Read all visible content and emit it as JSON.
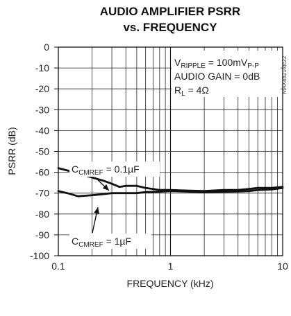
{
  "chart_data": {
    "type": "line",
    "title_lines": [
      "AUDIO AMPLIFIER PSRR",
      "vs. FREQUENCY"
    ],
    "xlabel": "FREQUENCY (kHz)",
    "ylabel": "PSRR (dB)",
    "x_scale": "log",
    "xlim": [
      0.1,
      10
    ],
    "ylim": [
      -100,
      0
    ],
    "x_ticks": [
      {
        "value": 0.1,
        "label": "0.1"
      },
      {
        "value": 1,
        "label": "1"
      },
      {
        "value": 10,
        "label": "10"
      }
    ],
    "y_ticks": [
      0,
      -10,
      -20,
      -30,
      -40,
      -50,
      -60,
      -70,
      -80,
      -90,
      -100
    ],
    "grid": true,
    "conditions": [
      {
        "main": "V",
        "sub": "RIPPLE",
        "rest": " = 100mV",
        "sub2": "P-P"
      },
      {
        "main": "AUDIO GAIN = 0dB",
        "sub": "",
        "rest": "",
        "sub2": ""
      },
      {
        "main": "R",
        "sub": "L",
        "rest": " = 4Ω",
        "sub2": ""
      }
    ],
    "part_code": "MAX8821toc22",
    "series": [
      {
        "name_main": "C",
        "name_sub": "CMREF",
        "name_rest": " = 0.1µF",
        "x": [
          0.1,
          0.15,
          0.2,
          0.25,
          0.3,
          0.35,
          0.4,
          0.5,
          0.6,
          0.7,
          0.8,
          1.0,
          1.5,
          2,
          3,
          4,
          5,
          6,
          7,
          8,
          10
        ],
        "y": [
          -58,
          -60.5,
          -62.5,
          -64,
          -65.5,
          -67,
          -66.5,
          -66.5,
          -67.5,
          -68,
          -68.5,
          -68.5,
          -68.8,
          -69,
          -68.5,
          -68.5,
          -68,
          -67.5,
          -67.5,
          -67.5,
          -67
        ]
      },
      {
        "name_main": "C",
        "name_sub": "CMREF",
        "name_rest": " = 1µF",
        "x": [
          0.1,
          0.12,
          0.15,
          0.2,
          0.25,
          0.3,
          0.4,
          0.5,
          0.6,
          0.8,
          1.0,
          1.5,
          2,
          3,
          4,
          5,
          6,
          8,
          10
        ],
        "y": [
          -69,
          -70,
          -71.5,
          -71,
          -70.5,
          -70,
          -70,
          -70,
          -69.5,
          -69.3,
          -69,
          -69.3,
          -69.5,
          -69.3,
          -69.2,
          -69,
          -68.5,
          -68.2,
          -67.5
        ]
      }
    ]
  }
}
